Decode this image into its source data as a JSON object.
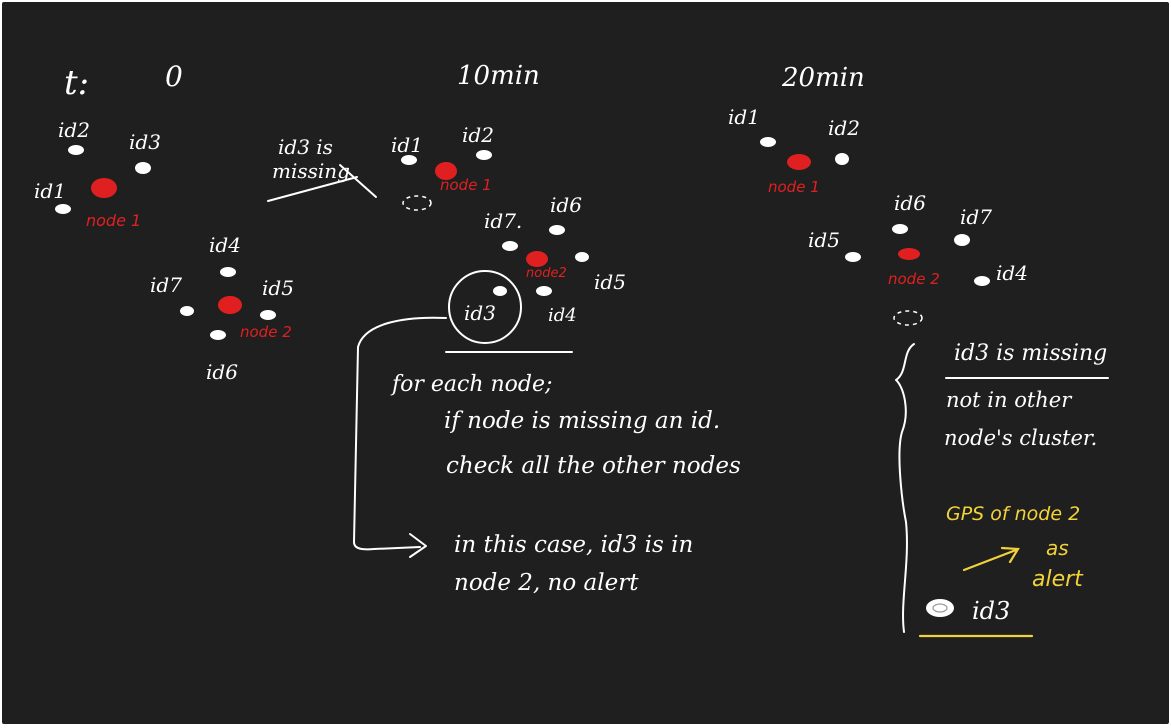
{
  "timeline": {
    "t_label": "t:",
    "t0": "0",
    "t10": "10min",
    "t20": "20min"
  },
  "panel0": {
    "ids": {
      "id2": "id2",
      "id3": "id3",
      "id1": "id1",
      "id4": "id4",
      "id7": "id7",
      "id5": "id5",
      "id6": "id6"
    },
    "node1": "node 1",
    "node2": "node 2"
  },
  "panel10": {
    "missing_note_line1": "id3 is",
    "missing_note_line2": "missing",
    "ids": {
      "id1": "id1",
      "id2": "id2",
      "id7": "id7.",
      "id6": "id6",
      "id5": "id5",
      "id4": "id4",
      "id3": "id3"
    },
    "node1": "node 1",
    "node2": "node2",
    "explanation": {
      "line1": "for each node;",
      "line2": "if node is missing an id.",
      "line3": "check all the other nodes",
      "line4": "in this case, id3 is in",
      "line5": "node 2, no alert"
    }
  },
  "panel20": {
    "ids": {
      "id1": "id1",
      "id2": "id2",
      "id6": "id6",
      "id7": "id7",
      "id5": "id5",
      "id4": "id4",
      "id3": "id3"
    },
    "node1": "node 1",
    "node2": "node 2",
    "notes": {
      "line1": "id3 is missing",
      "line2": "not in other",
      "line3": "node's cluster."
    },
    "alert": {
      "line1": "GPS of node 2",
      "line2": "as",
      "line3": "alert"
    }
  },
  "colors": {
    "background": "#1f1f1f",
    "ink": "#ffffff",
    "node": "#e02020",
    "highlight": "#f2d23a"
  }
}
